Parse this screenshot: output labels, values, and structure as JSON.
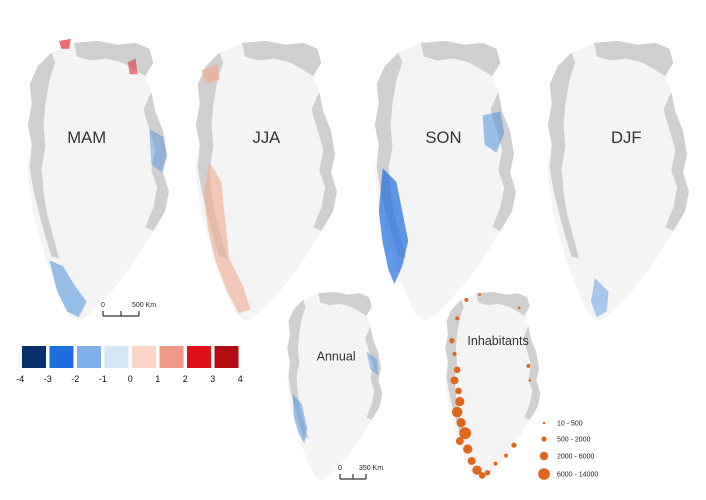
{
  "panels": [
    {
      "id": "mam",
      "label": "MAM"
    },
    {
      "id": "jja",
      "label": "JJA"
    },
    {
      "id": "son",
      "label": "SON"
    },
    {
      "id": "djf",
      "label": "DJF"
    },
    {
      "id": "annual",
      "label": "Annual"
    },
    {
      "id": "inhabitants",
      "label": "Inhabitants"
    }
  ],
  "scalebars": {
    "top": {
      "zero": "0",
      "label": "500 Km"
    },
    "bottom": {
      "zero": "0",
      "label": "350 Km"
    }
  },
  "color_legend": {
    "ticks": [
      "-4",
      "-3",
      "-2",
      "-1",
      "0",
      "1",
      "2",
      "3",
      "4"
    ],
    "colors": [
      "#08306b",
      "#1e6ee0",
      "#7fb0ea",
      "#d5e6f7",
      "#fbd6c6",
      "#ef9a86",
      "#e0101a",
      "#b30d14"
    ]
  },
  "size_legend": {
    "color": "#e0661c",
    "classes": [
      "10 - 500",
      "500 - 2000",
      "2000 - 6000",
      "6000 - 14000"
    ]
  },
  "palette": {
    "ice": "#f4f4f4",
    "land": "#cfcfcf",
    "negative": "#4a8fe0",
    "positive": "#f2a98e",
    "strong_positive": "#e0303a"
  }
}
